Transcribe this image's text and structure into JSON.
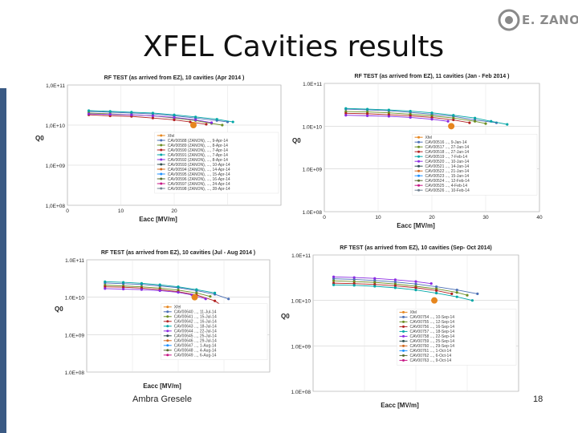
{
  "slide": {
    "title": "XFEL Cavities results",
    "author": "Ambra Gresele",
    "page_number": "18",
    "logo_text": "E. ZANON",
    "accent": "#3b5a84"
  },
  "chart_data": [
    {
      "type": "scatter",
      "title": "RF TEST (as arrived from EZ), 10 cavities (Apr 2014 )",
      "xlabel": "Eacc [MV/m]",
      "ylabel": "Q0",
      "ylog": true,
      "ylim": [
        100000000.0,
        100000000000.0
      ],
      "xlim": [
        0,
        40
      ],
      "ytick_labels": [
        "1,0E+11",
        "1,0E+10",
        "1,0E+09",
        "1,0E+08"
      ],
      "xtick_labels": [
        "0",
        "10",
        "20"
      ],
      "legend": [
        "Xfel",
        "CAV00588 (ZANON), ..., 9-Apr-14",
        "CAV00589 (ZANON), ..., 8-Apr-14",
        "CAV00590 (ZANON), ..., 7-Apr-14",
        "CAV00591 (ZANON), ..., 7-Apr-14",
        "CAV00592 (ZANON), ..., 8-Apr-14",
        "CAV00593 (ZANON), ..., 10-Apr-14",
        "CAV00594 (ZANON), ..., 14-Apr-14",
        "CAV00595 (ZANON), ..., 15-Apr-14",
        "CAV00596 (ZANON), ..., 16-Apr-14",
        "CAV00597 (ZANON), ..., 24-Apr-14",
        "CAV00598 (ZANON), ..., 28-Apr-14"
      ],
      "series_colors": [
        "#e6861e",
        "#4a6fb5",
        "#6b8e23",
        "#b22222",
        "#00a6a6",
        "#8a2be2",
        "#2f4f4f",
        "#d2691e",
        "#1e90ff",
        "#556b2f",
        "#c71585",
        "#708090"
      ],
      "series": [
        {
          "x": [
            4,
            8,
            12,
            16,
            20,
            24,
            28,
            30
          ],
          "y": [
            22000000000.0,
            21000000000.0,
            20000000000.0,
            19000000000.0,
            17000000000.0,
            15000000000.0,
            13000000000.0,
            12000000000.0
          ]
        },
        {
          "x": [
            4,
            8,
            12,
            16,
            20,
            24,
            27,
            29
          ],
          "y": [
            20000000000.0,
            19000000000.0,
            18000000000.0,
            17000000000.0,
            15000000000.0,
            13000000000.0,
            11000000000.0,
            10000000000.0
          ]
        },
        {
          "x": [
            4,
            8,
            12,
            16,
            20,
            23,
            26
          ],
          "y": [
            18000000000.0,
            17000000000.0,
            16500000000.0,
            15000000000.0,
            13500000000.0,
            12000000000.0,
            10500000000.0
          ]
        },
        {
          "x": [
            4,
            8,
            12,
            16,
            20,
            24,
            28,
            31
          ],
          "y": [
            23000000000.0,
            22000000000.0,
            21000000000.0,
            20000000000.0,
            18000000000.0,
            16000000000.0,
            14000000000.0,
            12000000000.0
          ]
        },
        {
          "x": [
            4,
            8,
            12,
            16,
            20,
            24,
            27
          ],
          "y": [
            19000000000.0,
            18500000000.0,
            18000000000.0,
            17000000000.0,
            15500000000.0,
            13500000000.0,
            11500000000.0
          ]
        }
      ],
      "xfel_point": {
        "x": 23.6,
        "y": 10000000000.0
      }
    },
    {
      "type": "scatter",
      "title": "RF TEST (as arrived from EZ), 11 cavities (Jan - Feb 2014 )",
      "xlabel": "Eacc [MV/m]",
      "ylabel": "Q0",
      "ylog": true,
      "ylim": [
        100000000.0,
        100000000000.0
      ],
      "xlim": [
        0,
        40
      ],
      "ytick_labels": [
        "1.0E+11",
        "1.0E+10",
        "1.0E+09",
        "1.0E+08"
      ],
      "xtick_labels": [
        "0",
        "10",
        "20",
        "30",
        "40"
      ],
      "legend": [
        "Xfel",
        "CAV00516 ..., 9-Jan-14",
        "CAV00517 ..., 27-Jan-14",
        "CAV00518 ..., 27-Jan-14",
        "CAV00519 ..., 7-Feb-14",
        "CAV00520 ..., 10-Jan-14",
        "CAV00521 ..., 14-Jan-14",
        "CAV00522 ..., 21-Jan-14",
        "CAV00523 ..., 15-Jan-14",
        "CAV00524 ..., 12-Feb-14",
        "CAV00525 ..., 4-Feb-14",
        "CAV00526 ..., 10-Feb-14"
      ],
      "series_colors": [
        "#e6861e",
        "#4a6fb5",
        "#6b8e23",
        "#b22222",
        "#00a6a6",
        "#8a2be2",
        "#2f4f4f",
        "#d2691e",
        "#1e90ff",
        "#556b2f",
        "#c71585",
        "#708090"
      ],
      "series": [
        {
          "x": [
            4,
            8,
            12,
            16,
            20,
            24,
            28,
            32
          ],
          "y": [
            25000000000.0,
            24000000000.0,
            23000000000.0,
            21000000000.0,
            19000000000.0,
            17000000000.0,
            14000000000.0,
            12000000000.0
          ]
        },
        {
          "x": [
            4,
            8,
            12,
            16,
            20,
            24,
            28,
            30
          ],
          "y": [
            22000000000.0,
            21500000000.0,
            20500000000.0,
            19000000000.0,
            17500000000.0,
            15500000000.0,
            13000000000.0,
            11500000000.0
          ]
        },
        {
          "x": [
            4,
            8,
            12,
            16,
            20,
            24,
            27
          ],
          "y": [
            20000000000.0,
            19500000000.0,
            18500000000.0,
            17500000000.0,
            16000000000.0,
            14000000000.0,
            12000000000.0
          ]
        },
        {
          "x": [
            4,
            8,
            12,
            16,
            20,
            24,
            28,
            31,
            34
          ],
          "y": [
            26000000000.0,
            25000000000.0,
            24000000000.0,
            22500000000.0,
            20500000000.0,
            18000000000.0,
            15500000000.0,
            13000000000.0,
            11000000000.0
          ]
        },
        {
          "x": [
            4,
            8,
            12,
            16,
            20,
            23
          ],
          "y": [
            18000000000.0,
            17500000000.0,
            17000000000.0,
            16000000000.0,
            14500000000.0,
            13000000000.0
          ]
        }
      ],
      "xfel_point": {
        "x": 23.6,
        "y": 10000000000.0
      }
    },
    {
      "type": "scatter",
      "title": "RF TEST (as arrived from EZ), 10 cavities (Jul - Aug 2014 )",
      "xlabel": "Eacc [MV/m]",
      "ylabel": "Q0",
      "ylog": true,
      "ylim": [
        100000000.0,
        100000000000.0
      ],
      "xlim": [
        0,
        40
      ],
      "ytick_labels": [
        "1.0E+11",
        "1.0E+10",
        "1.0E+09",
        "1.0E+08"
      ],
      "xtick_labels": [],
      "legend": [
        "Xfel",
        "CAV00640 ..., 11-Jul-14",
        "CAV00641 ..., 15-Jul-14",
        "CAV00642 ..., 16-Jul-14",
        "CAV00643 ..., 18-Jul-14",
        "CAV00644 ..., 22-Jul-14",
        "CAV00645 ..., 25-Jul-14",
        "CAV00646 ..., 29-Jul-14",
        "CAV00647 ..., 1-Aug-14",
        "CAV00648 ..., 4-Aug-14",
        "CAV00649 ..., 6-Aug-14"
      ],
      "series_colors": [
        "#e6861e",
        "#4a6fb5",
        "#6b8e23",
        "#b22222",
        "#00a6a6",
        "#8a2be2",
        "#2f4f4f",
        "#d2691e",
        "#1e90ff",
        "#556b2f",
        "#c71585"
      ],
      "series": [
        {
          "x": [
            4,
            8,
            12,
            16,
            20,
            24,
            28,
            31
          ],
          "y": [
            24000000000.0,
            23000000000.0,
            22000000000.0,
            20000000000.0,
            18000000000.0,
            15000000000.0,
            12000000000.0,
            9000000000.0
          ]
        },
        {
          "x": [
            4,
            8,
            12,
            16,
            20,
            24,
            27
          ],
          "y": [
            21000000000.0,
            20000000000.0,
            19000000000.0,
            17500000000.0,
            15500000000.0,
            13000000000.0,
            10500000000.0
          ]
        },
        {
          "x": [
            4,
            8,
            12,
            16,
            20,
            24,
            28,
            30
          ],
          "y": [
            19000000000.0,
            18500000000.0,
            17500000000.0,
            16000000000.0,
            14000000000.0,
            11500000000.0,
            8000000000.0,
            5500000000.0
          ]
        },
        {
          "x": [
            4,
            8,
            12,
            16,
            20,
            24,
            28
          ],
          "y": [
            26000000000.0,
            25000000000.0,
            23500000000.0,
            21500000000.0,
            19000000000.0,
            16000000000.0,
            13000000000.0
          ]
        },
        {
          "x": [
            4,
            8,
            12,
            16,
            20,
            23,
            26
          ],
          "y": [
            17000000000.0,
            16500000000.0,
            16000000000.0,
            15000000000.0,
            13500000000.0,
            11500000000.0,
            9000000000.0
          ]
        }
      ],
      "xfel_point": {
        "x": 23.6,
        "y": 10000000000.0
      }
    },
    {
      "type": "scatter",
      "title": "RF TEST (as arrived from EZ), 10 cavities (Sep- Oct 2014)",
      "xlabel": "Eacc [MV/m]",
      "ylabel": "Q0",
      "ylog": true,
      "ylim": [
        100000000.0,
        100000000000.0
      ],
      "xlim": [
        0,
        40
      ],
      "ytick_labels": [
        "1.0E+11",
        "1.0E+10",
        "1.0E+09",
        "1.0E+08"
      ],
      "xtick_labels": [],
      "legend": [
        "Xfel",
        "CAV00754 ..., 10-Sep-14",
        "CAV00755 ..., 12-Sep-14",
        "CAV00756 ..., 16-Sep-14",
        "CAV00757 ..., 18-Sep-14",
        "CAV00758 ..., 22-Sep-14",
        "CAV00759 ..., 25-Sep-14",
        "CAV00760 ..., 29-Sep-14",
        "CAV00761 ..., 1-Oct-14",
        "CAV00762 ..., 6-Oct-14",
        "CAV00763 ..., 9-Oct-14"
      ],
      "series_colors": [
        "#e6861e",
        "#4a6fb5",
        "#6b8e23",
        "#b22222",
        "#00a6a6",
        "#8a2be2",
        "#2f4f4f",
        "#d2691e",
        "#1e90ff",
        "#556b2f",
        "#c71585"
      ],
      "series": [
        {
          "x": [
            4,
            8,
            12,
            16,
            20,
            24,
            28,
            32
          ],
          "y": [
            30000000000.0,
            29000000000.0,
            27500000000.0,
            25500000000.0,
            23000000000.0,
            20000000000.0,
            17000000000.0,
            14000000000.0
          ]
        },
        {
          "x": [
            4,
            8,
            12,
            16,
            20,
            24,
            28,
            30
          ],
          "y": [
            27000000000.0,
            26000000000.0,
            25000000000.0,
            23000000000.0,
            20500000000.0,
            18000000000.0,
            15000000000.0,
            13000000000.0
          ]
        },
        {
          "x": [
            4,
            8,
            12,
            16,
            20,
            24,
            27
          ],
          "y": [
            24000000000.0,
            23500000000.0,
            22500000000.0,
            21000000000.0,
            19000000000.0,
            16500000000.0,
            14000000000.0
          ]
        },
        {
          "x": [
            4,
            8,
            12,
            16,
            20,
            24,
            28,
            31
          ],
          "y": [
            22000000000.0,
            21500000000.0,
            20500000000.0,
            19000000000.0,
            17000000000.0,
            14500000000.0,
            12000000000.0,
            10000000000.0
          ]
        },
        {
          "x": [
            4,
            8,
            12,
            16,
            20,
            23
          ],
          "y": [
            33000000000.0,
            32000000000.0,
            30500000000.0,
            28500000000.0,
            26000000000.0,
            23500000000.0
          ]
        }
      ],
      "xfel_point": {
        "x": 23.6,
        "y": 10000000000.0
      }
    }
  ]
}
